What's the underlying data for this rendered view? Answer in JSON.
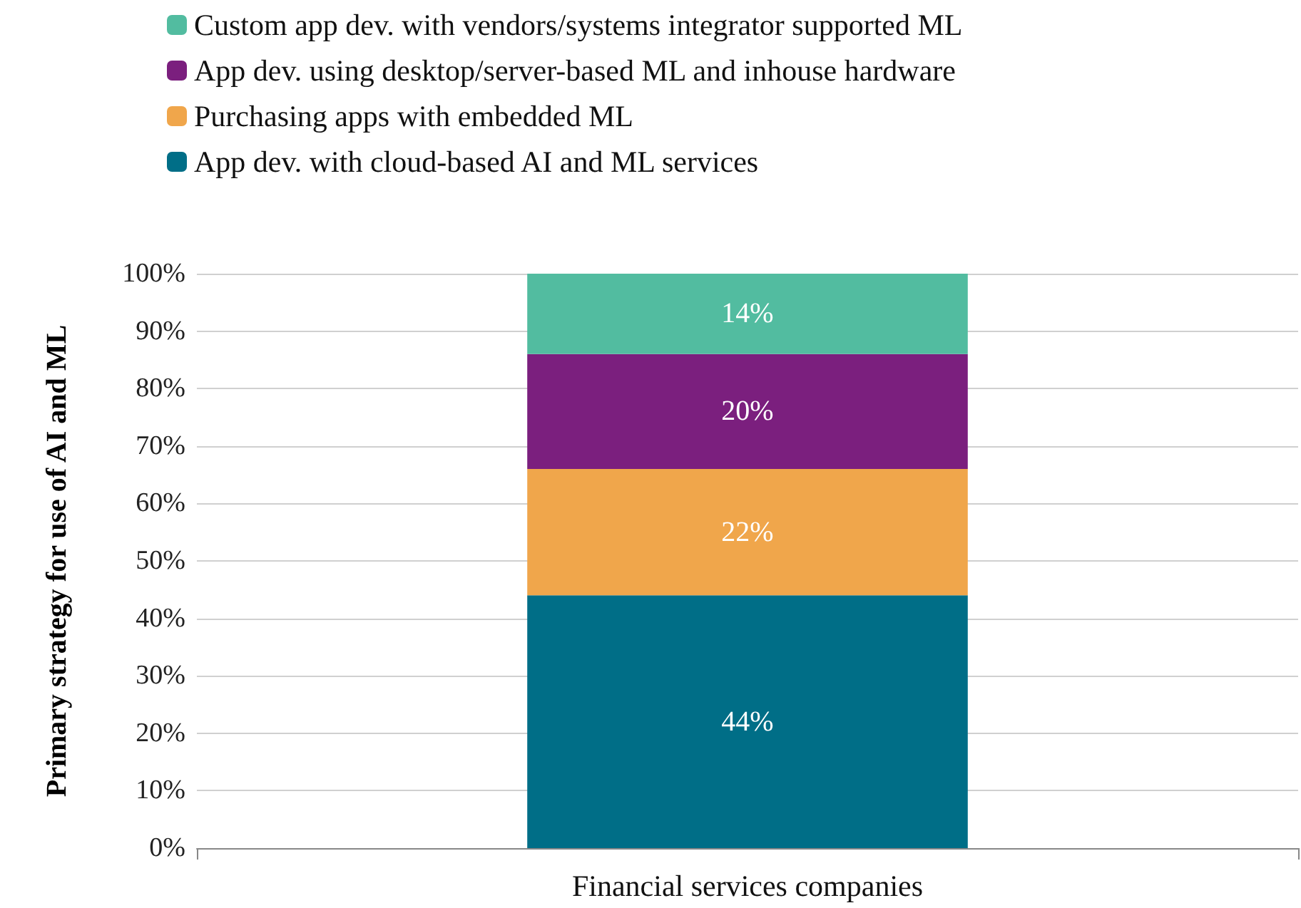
{
  "chart_data": {
    "type": "bar",
    "stacked": true,
    "ylabel": "Primary strategy for use of AI and ML",
    "categories": [
      "Financial services companies"
    ],
    "series": [
      {
        "name": "App dev. with cloud-based AI and ML services",
        "color": "#006e87",
        "values": [
          44
        ],
        "value_labels": [
          "44%"
        ]
      },
      {
        "name": "Purchasing apps with embedded ML",
        "color": "#f0a64b",
        "values": [
          22
        ],
        "value_labels": [
          "22%"
        ]
      },
      {
        "name": "App dev. using desktop/server-based ML and inhouse hardware",
        "color": "#7b1f7e",
        "values": [
          20
        ],
        "value_labels": [
          "20%"
        ]
      },
      {
        "name": "Custom app dev. with vendors/systems integrator supported ML",
        "color": "#52bca0",
        "values": [
          14
        ],
        "value_labels": [
          "14%"
        ]
      }
    ],
    "ylim": [
      0,
      100
    ],
    "yticks": [
      {
        "value": 0,
        "label": "0%"
      },
      {
        "value": 10,
        "label": "10%"
      },
      {
        "value": 20,
        "label": "20%"
      },
      {
        "value": 30,
        "label": "30%"
      },
      {
        "value": 40,
        "label": "40%"
      },
      {
        "value": 50,
        "label": "50%"
      },
      {
        "value": 60,
        "label": "60%"
      },
      {
        "value": 70,
        "label": "70%"
      },
      {
        "value": 80,
        "label": "80%"
      },
      {
        "value": 90,
        "label": "90%"
      },
      {
        "value": 100,
        "label": "100%"
      }
    ],
    "grid": "y",
    "legend": "top"
  }
}
